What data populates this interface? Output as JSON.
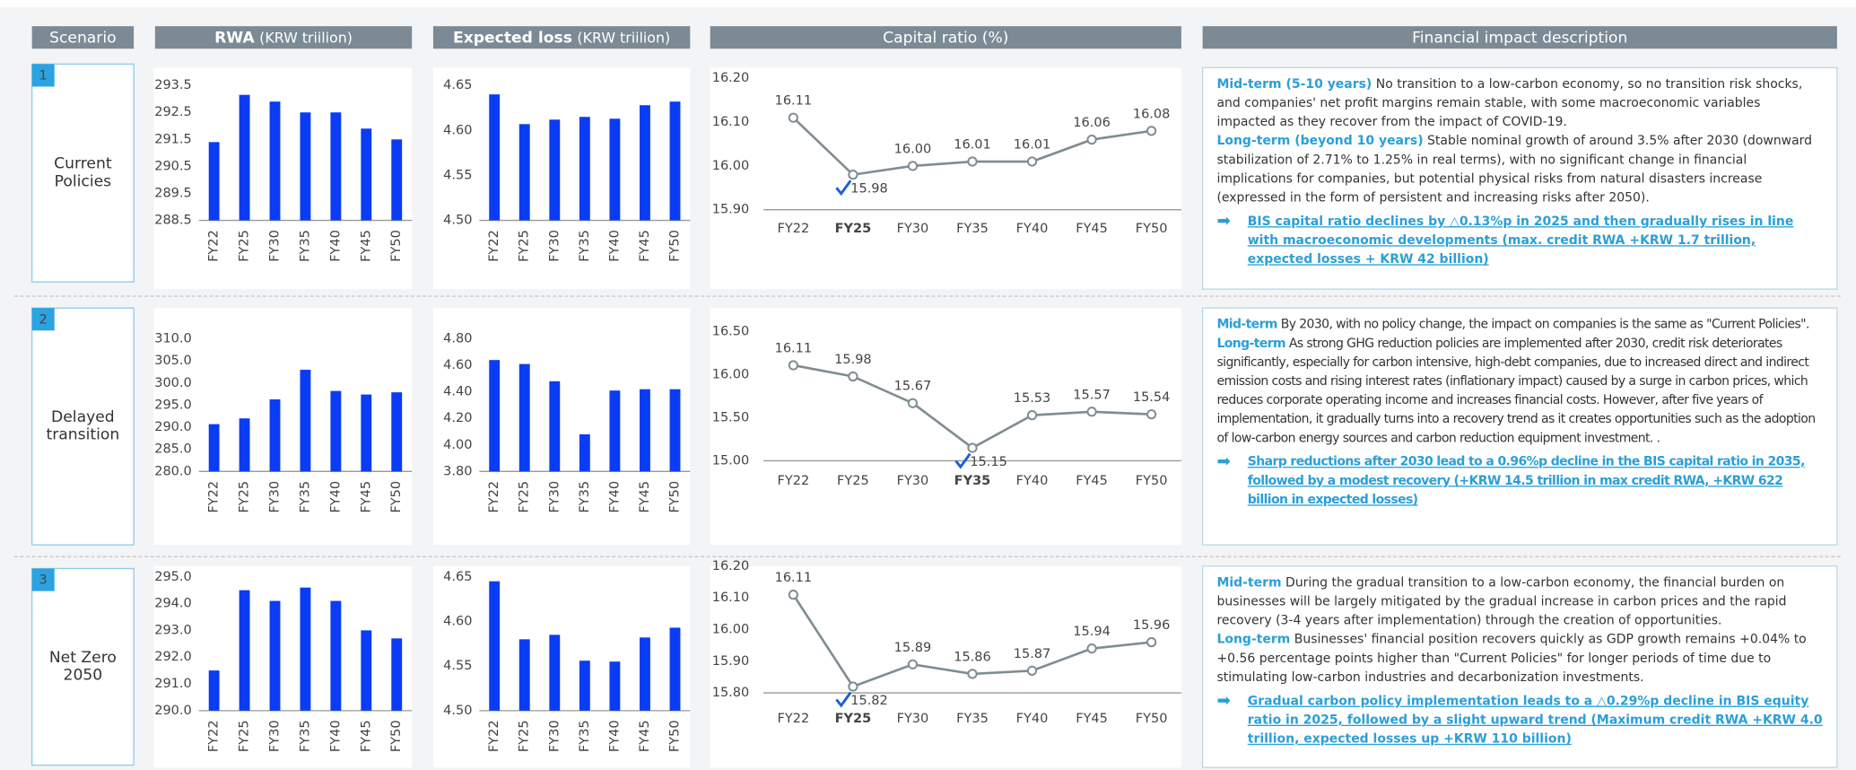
{
  "headers": [
    {
      "title": "Scenario"
    },
    {
      "title": "RWA",
      "unit": "(KRW triilion)"
    },
    {
      "title": "Expected loss",
      "unit": "(KRW triilion)"
    },
    {
      "title": "Capital ratio (%)"
    },
    {
      "title": "Financial impact description"
    }
  ],
  "scenarios": [
    {
      "number": "1",
      "name": "Current Policies",
      "description": [
        {
          "label": "Mid-term (5-10 years)",
          "text": "No transition to a low-carbon economy, so no transition risk shocks, and companies' net profit margins remain stable, with some macroeconomic variables impacted as they recover from the impact of COVID-19."
        },
        {
          "label": "Long-term (beyond 10 years)",
          "text": "Stable nominal growth of around 3.5% after 2030 (downward stabilization of 2.71% to 1.25% in real terms), with no significant change in financial implications for companies, but potential physical risks from natural disasters increase (expressed in the form of persistent and increasing risks after 2050)."
        }
      ],
      "conclusion": "BIS capital ratio declines by △0.13%p in 2025 and then gradually rises in line with macroeconomic developments (max. credit RWA +KRW 1.7 trillion, expected losses + KRW 42 billion)"
    },
    {
      "number": "2",
      "name": "Delayed transition",
      "description": [
        {
          "label": "Mid-term",
          "text": "By 2030, with no policy change, the impact on companies is the same as \"Current Policies\"."
        },
        {
          "label": "Long-term",
          "text": "As strong GHG reduction policies are implemented after 2030, credit risk deteriorates significantly, especially for carbon intensive, high-debt companies, due to increased direct and indirect emission costs and rising interest rates (inflationary impact) caused by a surge in carbon prices, which reduces corporate operating income and increases financial costs. However, after five years of implementation, it gradually turns into a recovery trend as it creates opportunities such as the adoption of low-carbon energy sources and carbon reduction equipment investment. ."
        }
      ],
      "conclusion": "Sharp reductions after 2030 lead to a 0.96%p decline in the BIS capital ratio in 2035, followed by a modest recovery (+KRW 14.5 trillion in max credit RWA, +KRW 622 billion in expected losses)"
    },
    {
      "number": "3",
      "name": "Net Zero 2050",
      "description": [
        {
          "label": "Mid-term",
          "text": "During the gradual transition to a low-carbon economy, the financial burden on businesses will be largely mitigated by the gradual increase in carbon prices and the rapid recovery (3-4 years after implementation) through the creation of opportunities."
        },
        {
          "label": "Long-term",
          "text": "Businesses' financial position recovers quickly as GDP growth remains +0.04% to +0.56 percentage points higher than \"Current Policies\" for longer periods of time due to stimulating low-carbon industries and decarbonization investments."
        }
      ],
      "conclusion": "Gradual carbon policy implementation leads to a △0.29%p decline in BIS equity ratio in 2025, followed by a slight upward trend (Maximum credit RWA +KRW 4.0 trillion, expected losses up +KRW 110 billion)"
    }
  ],
  "chart_data": [
    {
      "type": "bar",
      "color": "#0a3cf5",
      "categories": [
        "FY22",
        "FY25",
        "FY30",
        "FY35",
        "FY40",
        "FY45",
        "FY50"
      ],
      "values": [
        291.4,
        293.15,
        292.9,
        292.5,
        292.5,
        291.9,
        291.5
      ],
      "ylim": [
        288.5,
        293.5
      ],
      "yticks": [
        288.5,
        289.5,
        290.5,
        291.5,
        292.5,
        293.5
      ]
    },
    {
      "type": "bar",
      "color": "#0a3cf5",
      "categories": [
        "FY22",
        "FY25",
        "FY30",
        "FY35",
        "FY40",
        "FY45",
        "FY50"
      ],
      "values": [
        4.64,
        4.607,
        4.612,
        4.615,
        4.613,
        4.628,
        4.632
      ],
      "ylim": [
        4.5,
        4.65
      ],
      "yticks": [
        {
          "value": 4.5,
          "label": "4.50"
        },
        {
          "value": 4.55,
          "label": "4.55"
        },
        {
          "value": 4.6,
          "label": "4.60"
        },
        {
          "value": 4.65,
          "label": "4.65"
        }
      ]
    },
    {
      "type": "line",
      "color": "#7f8c93",
      "categories": [
        "FY22",
        "FY25",
        "FY30",
        "FY35",
        "FY40",
        "FY45",
        "FY50"
      ],
      "values": [
        16.11,
        15.98,
        16.0,
        16.01,
        16.01,
        16.06,
        16.08
      ],
      "value_labels": [
        "16.11",
        "15.98",
        "16.00",
        "16.01",
        "16.01",
        "16.06",
        "16.08"
      ],
      "highlight": 1,
      "ylim": [
        15.9,
        16.2
      ],
      "yticks": [
        {
          "value": 15.9,
          "label": "15.90"
        },
        {
          "value": 16.0,
          "label": "16.00"
        },
        {
          "value": 16.1,
          "label": "16.10"
        },
        {
          "value": 16.2,
          "label": "16.20"
        }
      ]
    },
    {
      "type": "bar",
      "color": "#0a3cf5",
      "categories": [
        "FY22",
        "FY25",
        "FY30",
        "FY35",
        "FY40",
        "FY45",
        "FY50"
      ],
      "values": [
        290.7,
        292.0,
        296.3,
        303.0,
        298.2,
        297.4,
        297.9
      ],
      "ylim": [
        280,
        310
      ],
      "yticks": [
        {
          "value": 280,
          "label": "280.0"
        },
        {
          "value": 285,
          "label": "285.0"
        },
        {
          "value": 290,
          "label": "290.0"
        },
        {
          "value": 295,
          "label": "295.0"
        },
        {
          "value": 300,
          "label": "300.0"
        },
        {
          "value": 305,
          "label": "305.0"
        },
        {
          "value": 310,
          "label": "310.0"
        }
      ]
    },
    {
      "type": "bar",
      "color": "#0a3cf5",
      "categories": [
        "FY22",
        "FY25",
        "FY30",
        "FY35",
        "FY40",
        "FY45",
        "FY50"
      ],
      "values": [
        4.64,
        4.61,
        4.48,
        4.08,
        4.41,
        4.42,
        4.42
      ],
      "ylim": [
        3.8,
        4.8
      ],
      "yticks": [
        {
          "value": 3.8,
          "label": "3.80"
        },
        {
          "value": 4.0,
          "label": "4.00"
        },
        {
          "value": 4.2,
          "label": "4.20"
        },
        {
          "value": 4.4,
          "label": "4.40"
        },
        {
          "value": 4.6,
          "label": "4.60"
        },
        {
          "value": 4.8,
          "label": "4.80"
        }
      ]
    },
    {
      "type": "line",
      "color": "#7f8c93",
      "categories": [
        "FY22",
        "FY25",
        "FY30",
        "FY35",
        "FY40",
        "FY45",
        "FY50"
      ],
      "values": [
        16.11,
        15.98,
        15.67,
        15.15,
        15.53,
        15.57,
        15.54
      ],
      "value_labels": [
        "16.11",
        "15.98",
        "15.67",
        "15.15",
        "15.53",
        "15.57",
        "15.54"
      ],
      "highlight": 3,
      "ylim": [
        15.0,
        16.5
      ],
      "yticks": [
        {
          "value": 15.0,
          "label": "15.00"
        },
        {
          "value": 15.5,
          "label": "15.50"
        },
        {
          "value": 16.0,
          "label": "16.00"
        },
        {
          "value": 16.5,
          "label": "16.50"
        }
      ]
    },
    {
      "type": "bar",
      "color": "#0a3cf5",
      "categories": [
        "FY22",
        "FY25",
        "FY30",
        "FY35",
        "FY40",
        "FY45",
        "FY50"
      ],
      "values": [
        291.5,
        294.5,
        294.1,
        294.6,
        294.1,
        293.0,
        292.7
      ],
      "ylim": [
        290,
        295
      ],
      "yticks": [
        {
          "value": 290,
          "label": "290.0"
        },
        {
          "value": 291,
          "label": "291.0"
        },
        {
          "value": 292,
          "label": "292.0"
        },
        {
          "value": 293,
          "label": "293.0"
        },
        {
          "value": 294,
          "label": "294.0"
        },
        {
          "value": 295,
          "label": "295.0"
        }
      ]
    },
    {
      "type": "bar",
      "color": "#0a3cf5",
      "categories": [
        "FY22",
        "FY25",
        "FY30",
        "FY35",
        "FY40",
        "FY45",
        "FY50"
      ],
      "values": [
        4.645,
        4.58,
        4.585,
        4.556,
        4.555,
        4.582,
        4.593
      ],
      "ylim": [
        4.5,
        4.65
      ],
      "yticks": [
        {
          "value": 4.5,
          "label": "4.50"
        },
        {
          "value": 4.55,
          "label": "4.55"
        },
        {
          "value": 4.6,
          "label": "4.60"
        },
        {
          "value": 4.65,
          "label": "4.65"
        }
      ]
    },
    {
      "type": "line",
      "color": "#7f8c93",
      "categories": [
        "FY22",
        "FY25",
        "FY30",
        "FY35",
        "FY40",
        "FY45",
        "FY50"
      ],
      "values": [
        16.11,
        15.82,
        15.89,
        15.86,
        15.87,
        15.94,
        15.96
      ],
      "value_labels": [
        "16.11",
        "15.82",
        "15.89",
        "15.86",
        "15.87",
        "15.94",
        "15.96"
      ],
      "highlight": 1,
      "ylim": [
        15.8,
        16.2
      ],
      "yticks": [
        {
          "value": 15.8,
          "label": "15.80"
        },
        {
          "value": 15.9,
          "label": "15.90"
        },
        {
          "value": 16.0,
          "label": "16.00"
        },
        {
          "value": 16.1,
          "label": "16.10"
        },
        {
          "value": 16.2,
          "label": "16.20"
        }
      ]
    }
  ]
}
